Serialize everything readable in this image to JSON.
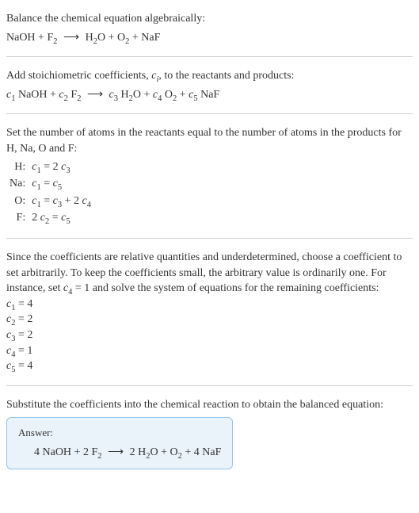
{
  "intro": {
    "line1": "Balance the chemical equation algebraically:"
  },
  "eq1": {
    "lhs1": "NaOH",
    "plus1": "+",
    "lhs2": "F",
    "lhs2sub": "2",
    "arrow": "⟶",
    "rhs1": "H",
    "rhs1sub": "2",
    "rhs1b": "O",
    "plus2": "+",
    "rhs2": "O",
    "rhs2sub": "2",
    "plus3": "+",
    "rhs3": "NaF"
  },
  "stoich": {
    "text": "Add stoichiometric coefficients, ",
    "ci": "c",
    "cisub": "i",
    "text2": ", to the reactants and products:"
  },
  "eq2": {
    "c1": "c",
    "c1sub": "1",
    "sp1": " NaOH",
    "plus1": "+",
    "c2": "c",
    "c2sub": "2",
    "sp2": " F",
    "sp2sub": "2",
    "arrow": "⟶",
    "c3": "c",
    "c3sub": "3",
    "sp3": " H",
    "sp3sub": "2",
    "sp3b": "O",
    "plus2": "+",
    "c4": "c",
    "c4sub": "4",
    "sp4": " O",
    "sp4sub": "2",
    "plus3": "+",
    "c5": "c",
    "c5sub": "5",
    "sp5": " NaF"
  },
  "atoms": {
    "intro": "Set the number of atoms in the reactants equal to the number of atoms in the products for H, Na, O and F:",
    "rows": {
      "h": {
        "label": "H:",
        "c1": "c",
        "c1s": "1",
        "eq": " = 2 ",
        "c3": "c",
        "c3s": "3"
      },
      "na": {
        "label": "Na:",
        "c1": "c",
        "c1s": "1",
        "eq": " = ",
        "c5": "c",
        "c5s": "5"
      },
      "o": {
        "label": "O:",
        "c1": "c",
        "c1s": "1",
        "eq": " = ",
        "c3": "c",
        "c3s": "3",
        "plus": " + 2 ",
        "c4": "c",
        "c4s": "4"
      },
      "f": {
        "label": "F:",
        "two": "2 ",
        "c2": "c",
        "c2s": "2",
        "eq": " = ",
        "c5": "c",
        "c5s": "5"
      }
    }
  },
  "choose": {
    "text1": "Since the coefficients are relative quantities and underdetermined, choose a coefficient to set arbitrarily. To keep the coefficients small, the arbitrary value is ordinarily one. For instance, set ",
    "c4": "c",
    "c4s": "4",
    "text2": " = 1 and solve the system of equations for the remaining coefficients:"
  },
  "solved": {
    "l1": {
      "c": "c",
      "s": "1",
      "v": " = 4"
    },
    "l2": {
      "c": "c",
      "s": "2",
      "v": " = 2"
    },
    "l3": {
      "c": "c",
      "s": "3",
      "v": " = 2"
    },
    "l4": {
      "c": "c",
      "s": "4",
      "v": " = 1"
    },
    "l5": {
      "c": "c",
      "s": "5",
      "v": " = 4"
    }
  },
  "subst": {
    "text": "Substitute the coefficients into the chemical reaction to obtain the balanced equation:"
  },
  "answer": {
    "label": "Answer:",
    "a1": "4 NaOH",
    "plus1": " + ",
    "a2": "2 F",
    "a2s": "2",
    "arrow": "⟶",
    "b1": "2 H",
    "b1s": "2",
    "b1b": "O",
    "plus2": " + ",
    "b2": "O",
    "b2s": "2",
    "plus3": " + ",
    "b3": "4 NaF"
  }
}
